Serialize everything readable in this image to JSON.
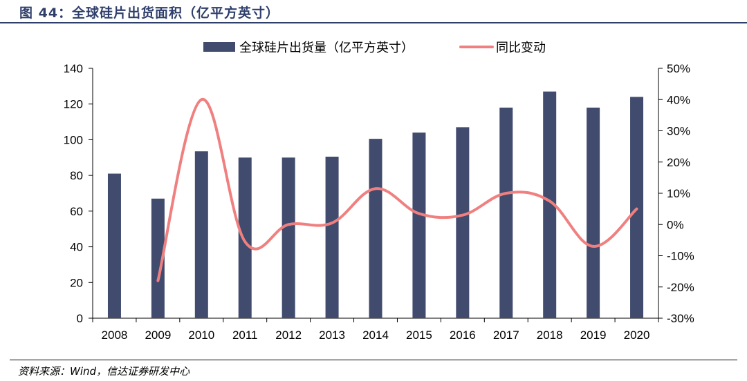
{
  "figure": {
    "title": "图 44：全球硅片出货面积（亿平方英寸）",
    "source": "资料来源：Wind，信达证券研发中心"
  },
  "colors": {
    "bar": "#414b6e",
    "line": "#f08080",
    "title": "#2f3f6b"
  },
  "chart_data": {
    "type": "bar",
    "categories": [
      "2008",
      "2009",
      "2010",
      "2011",
      "2012",
      "2013",
      "2014",
      "2015",
      "2016",
      "2017",
      "2018",
      "2019",
      "2020"
    ],
    "series": [
      {
        "name": "全球硅片出货量（亿平方英寸）",
        "type": "bar",
        "axis": "left",
        "values": [
          81,
          67,
          93.5,
          90,
          90,
          90.5,
          100.5,
          104,
          107,
          118,
          127,
          118,
          124
        ]
      },
      {
        "name": "同比变动",
        "type": "line",
        "axis": "right",
        "smooth": true,
        "values": [
          null,
          -18,
          40,
          -5.5,
          0,
          0.5,
          11.5,
          3.5,
          3,
          10,
          7.5,
          -7,
          5
        ]
      }
    ],
    "y_left": {
      "min": 0,
      "max": 140,
      "ticks": [
        "0",
        "20",
        "40",
        "60",
        "80",
        "100",
        "120",
        "140"
      ]
    },
    "y_right": {
      "min": -30,
      "max": 50,
      "ticks": [
        "-30%",
        "-20%",
        "-10%",
        "0%",
        "10%",
        "20%",
        "30%",
        "40%",
        "50%"
      ]
    },
    "legend": "top-center",
    "grid": false
  }
}
